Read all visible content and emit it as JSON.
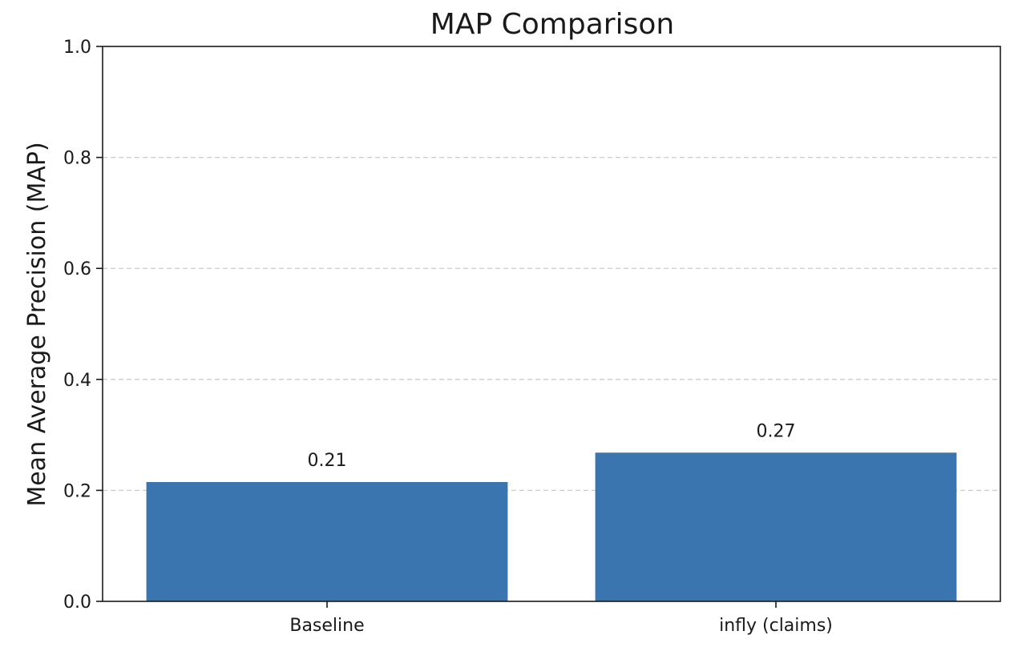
{
  "chart_data": {
    "type": "bar",
    "title": "MAP Comparison",
    "xlabel": "",
    "ylabel": "Mean Average Precision (MAP)",
    "categories": [
      "Baseline",
      "infly (claims)"
    ],
    "values": [
      0.215,
      0.268
    ],
    "value_labels": [
      "0.21",
      "0.27"
    ],
    "ylim": [
      0,
      1.0
    ],
    "yticks": [
      0.0,
      0.2,
      0.4,
      0.6,
      0.8,
      1.0
    ],
    "ytick_labels": [
      "0.0",
      "0.2",
      "0.4",
      "0.6",
      "0.8",
      "1.0"
    ],
    "grid": {
      "axis": "y",
      "style": "dashed"
    },
    "bar_color": "#3b75af",
    "grid_color": "#cccccc",
    "axis_color": "#1a1a1a"
  }
}
